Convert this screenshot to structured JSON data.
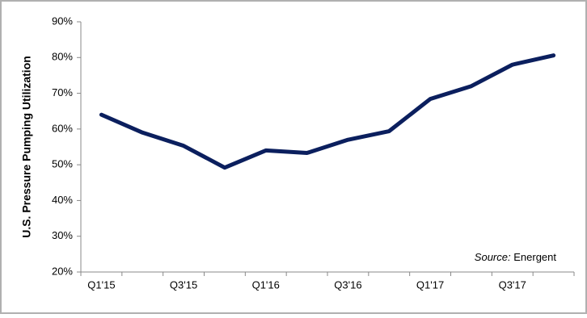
{
  "chart_data": {
    "type": "line",
    "y_label": "U.S. Pressure Pumping Utilization",
    "categories": [
      "Q1'15",
      null,
      "Q3'15",
      null,
      "Q1'16",
      null,
      "Q3'16",
      null,
      "Q1'17",
      null,
      "Q3'17",
      null
    ],
    "series": [
      {
        "color": "#0b1f5e",
        "values": [
          64,
          59,
          55.3,
          49.2,
          54,
          53.3,
          57,
          59.4,
          68.4,
          72,
          78,
          80.6
        ]
      }
    ],
    "ylim": [
      20,
      90
    ],
    "yticks": [
      {
        "value": 20,
        "label": "20%"
      },
      {
        "value": 30,
        "label": "30%"
      },
      {
        "value": 40,
        "label": "40%"
      },
      {
        "value": 50,
        "label": "50%"
      },
      {
        "value": 60,
        "label": "60%"
      },
      {
        "value": 70,
        "label": "70%"
      },
      {
        "value": 80,
        "label": "80%"
      },
      {
        "value": 90,
        "label": "90%"
      }
    ],
    "source_label": "Source:",
    "source": "Energent"
  }
}
